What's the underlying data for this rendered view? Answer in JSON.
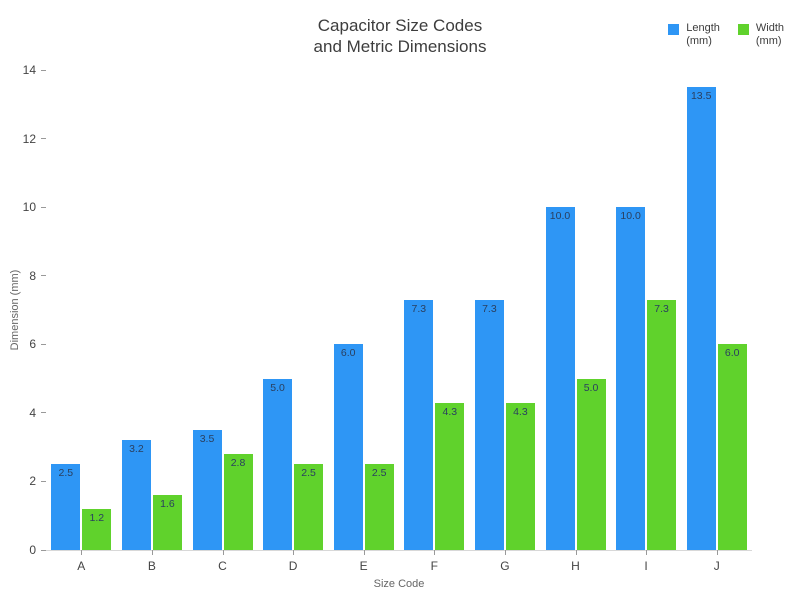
{
  "title": {
    "line1": "Capacitor Size Codes",
    "line2": "and Metric Dimensions"
  },
  "legend": {
    "items": [
      {
        "name": "Length (mm)",
        "line1": "Length",
        "line2": "(mm)",
        "color": "#2E96F5"
      },
      {
        "name": "Width (mm)",
        "line1": "Width",
        "line2": "(mm)",
        "color": "#60D22C"
      }
    ]
  },
  "chart_data": {
    "type": "bar",
    "title": "Capacitor Size Codes and Metric Dimensions",
    "categories": [
      "A",
      "B",
      "C",
      "D",
      "E",
      "F",
      "G",
      "H",
      "I",
      "J"
    ],
    "series": [
      {
        "name": "Length (mm)",
        "color": "#2E96F5",
        "values": [
          2.5,
          3.2,
          3.5,
          5.0,
          6.0,
          7.3,
          7.3,
          10.0,
          10.0,
          13.5
        ]
      },
      {
        "name": "Width (mm)",
        "color": "#60D22C",
        "values": [
          1.2,
          1.6,
          2.8,
          2.5,
          2.5,
          4.3,
          4.3,
          5.0,
          7.3,
          6.0
        ]
      }
    ],
    "bar_labels": [
      "2.5",
      "3.2",
      "3.5",
      "5.0",
      "6.0",
      "7.3",
      "7.3",
      "10.0",
      "10.0",
      "13.5",
      "1.2",
      "1.6",
      "2.8",
      "2.5",
      "2.5",
      "4.3",
      "4.3",
      "5.0",
      "7.3",
      "6.0"
    ],
    "xlabel": "Size Code",
    "ylabel": "Dimension (mm)",
    "ylim": [
      0,
      14
    ],
    "yticks": [
      0,
      2,
      4,
      6,
      8,
      10,
      12,
      14
    ],
    "grid": false,
    "legend_position": "top-right",
    "value_label_color": "#2a3f5f",
    "axis_line_color": "#d8d8d8"
  }
}
